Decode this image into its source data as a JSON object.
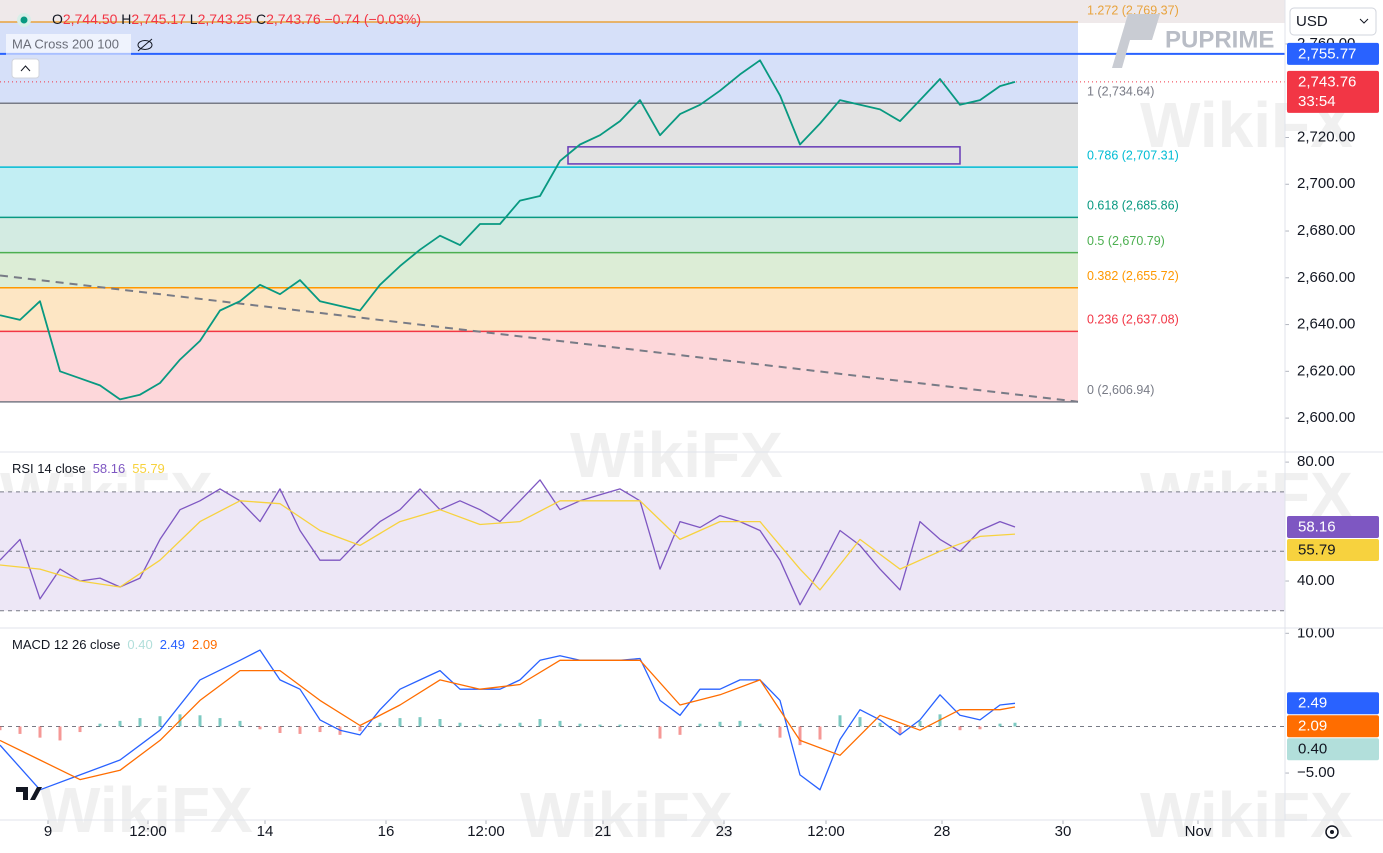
{
  "header": {
    "currency": "USD",
    "brand": "PUPRIME",
    "watermark": "WikiFX"
  },
  "legend": {
    "o_label": "O",
    "o": "2,744.50",
    "h_label": "H",
    "h": "2,745.17",
    "l_label": "L",
    "l": "2,743.25",
    "c_label": "C",
    "c": "2,743.76",
    "change": "−0.74 (−0.03%)",
    "indicator": "MA Cross 200 100"
  },
  "chart_data": [
    {
      "type": "line",
      "xlim": [
        0,
        257
      ],
      "ylim": [
        2585.5,
        2778.8
      ],
      "yticks": [
        {
          "value": 2600,
          "label": "2,600.00"
        },
        {
          "value": 2620,
          "label": "2,620.00"
        },
        {
          "value": 2640,
          "label": "2,640.00"
        },
        {
          "value": 2660,
          "label": "2,660.00"
        },
        {
          "value": 2680,
          "label": "2,680.00"
        },
        {
          "value": 2700,
          "label": "2,700.00"
        },
        {
          "value": 2720,
          "label": "2,720.00"
        },
        {
          "value": 2760,
          "label": "2,760.00"
        }
      ],
      "series": [
        {
          "color": "#089981",
          "x": [
            0,
            4,
            8,
            12,
            16,
            20,
            24,
            28,
            32,
            36,
            40,
            44,
            48,
            52,
            56,
            60,
            64,
            68,
            72,
            76,
            80,
            84,
            88,
            92,
            96,
            100,
            104,
            108,
            112,
            116,
            120,
            124,
            128,
            132,
            136,
            140,
            144,
            148,
            152,
            156,
            160,
            164,
            168,
            172,
            176,
            180,
            184,
            188,
            192,
            196,
            200,
            203
          ],
          "values": [
            2644,
            2642,
            2650,
            2620,
            2617,
            2614,
            2608,
            2610,
            2615,
            2625,
            2633,
            2646,
            2650,
            2657,
            2653,
            2659,
            2650,
            2648,
            2646,
            2657,
            2665,
            2672,
            2678,
            2674,
            2683,
            2683,
            2693,
            2695,
            2710,
            2717,
            2721,
            2727,
            2736,
            2721,
            2730,
            2734,
            2740,
            2747,
            2753,
            2738,
            2717,
            2726,
            2736,
            2734,
            2732,
            2727,
            2736,
            2745,
            2734,
            2736,
            2742,
            2743.76
          ]
        }
      ],
      "fib_levels": [
        {
          "label": "1.272 (2,769.37)",
          "value": 2769.37,
          "color": "#e8a33d",
          "fill": "#d6e0f9"
        },
        {
          "label": "1 (2,734.64)",
          "value": 2734.64,
          "color": "#787b86",
          "fill": "#e3e3e3"
        },
        {
          "label": "0.786 (2,707.31)",
          "value": 2707.31,
          "color": "#00bcd4",
          "fill": "#c2eef3"
        },
        {
          "label": "0.618 (2,685.86)",
          "value": 2685.86,
          "color": "#089981",
          "fill": "#d3ebe2"
        },
        {
          "label": "0.5 (2,670.79)",
          "value": 2670.79,
          "color": "#4caf50",
          "fill": "#dcedd6"
        },
        {
          "label": "0.382 (2,655.72)",
          "value": 2655.72,
          "color": "#ff9800",
          "fill": "#fde6c4"
        },
        {
          "label": "0.236 (2,637.08)",
          "value": 2637.08,
          "color": "#f23645",
          "fill": "#fdd7da"
        },
        {
          "label": "0 (2,606.94)",
          "value": 2606.94,
          "color": "#787b86"
        }
      ],
      "price_lines": [
        {
          "value": 2755.77,
          "label": "2,755.77",
          "color": "#2962ff",
          "style": "solid"
        },
        {
          "value": 2743.76,
          "label": "2,743.76",
          "color": "#f23645",
          "style": "dotted",
          "countdown": "33:54"
        }
      ],
      "trendline": {
        "x": [
          0,
          215.6
        ],
        "values": [
          2661,
          2607
        ],
        "color": "#787b86"
      },
      "rectangle": {
        "x": [
          113.6,
          192
        ],
        "values": [
          2716,
          2708.7
        ],
        "color": "#673ab7"
      }
    },
    {
      "type": "line",
      "title": "RSI 14 close",
      "xlim": [
        0,
        257
      ],
      "ylim": [
        24.2,
        83.4
      ],
      "yticks": [
        {
          "value": 80,
          "label": "80.00"
        },
        {
          "value": 40,
          "label": "40.00"
        }
      ],
      "levels": [
        70,
        50,
        30
      ],
      "band": [
        30,
        70
      ],
      "band_color": "#ede7f6",
      "series": [
        {
          "color": "#7e57c2",
          "label_color": "#ffffff",
          "x": [
            0,
            4,
            8,
            12,
            16,
            20,
            24,
            28,
            32,
            36,
            40,
            44,
            48,
            52,
            56,
            60,
            64,
            68,
            72,
            76,
            80,
            84,
            88,
            92,
            96,
            100,
            104,
            108,
            112,
            116,
            120,
            124,
            128,
            132,
            136,
            140,
            144,
            148,
            152,
            156,
            160,
            164,
            168,
            172,
            176,
            180,
            184,
            188,
            192,
            196,
            200,
            203
          ],
          "values": [
            47,
            54,
            34,
            44,
            40,
            41,
            38,
            41,
            54,
            64,
            67,
            71,
            67,
            60,
            71,
            57,
            47,
            47,
            54,
            60,
            64,
            71,
            64,
            67,
            64,
            60,
            67,
            74,
            64,
            67,
            69,
            71,
            67,
            44,
            60,
            58,
            62,
            60,
            57,
            47,
            32,
            44,
            57,
            52,
            44,
            37,
            60,
            54,
            50,
            57,
            60,
            58.16
          ]
        },
        {
          "color": "#f7d23e",
          "label_color": "#131722",
          "x": [
            0,
            8,
            16,
            24,
            32,
            40,
            48,
            56,
            64,
            72,
            80,
            88,
            96,
            104,
            112,
            120,
            128,
            136,
            144,
            152,
            160,
            164,
            172,
            180,
            188,
            196,
            203
          ],
          "values": [
            45.4,
            44,
            40,
            38,
            47,
            60,
            67,
            66,
            57,
            52,
            60,
            64,
            59,
            60,
            67,
            67,
            67,
            54,
            60,
            60,
            44,
            37,
            54,
            44,
            50,
            55,
            55.79
          ]
        }
      ]
    },
    {
      "type": "line",
      "title": "MACD 12 26 close",
      "xlim": [
        0,
        257
      ],
      "ylim": [
        -10.04,
        10.57
      ],
      "yticks": [
        {
          "value": 10,
          "label": "10.00"
        },
        {
          "value": -5,
          "label": "−5.00"
        }
      ],
      "levels": [
        0
      ],
      "xticks": [
        {
          "value": 9.6,
          "label": "9"
        },
        {
          "value": 29.6,
          "label": "12:00"
        },
        {
          "value": 53,
          "label": "14"
        },
        {
          "value": 77.2,
          "label": "16"
        },
        {
          "value": 97.2,
          "label": "12:00"
        },
        {
          "value": 120.6,
          "label": "21"
        },
        {
          "value": 144.8,
          "label": "23"
        },
        {
          "value": 165.2,
          "label": "12:00"
        },
        {
          "value": 188.4,
          "label": "28"
        },
        {
          "value": 212.6,
          "label": "30"
        },
        {
          "value": 239.6,
          "label": "Nov"
        }
      ],
      "series": [
        {
          "type": "bar",
          "color": "#b2dfdb",
          "label_color": "#131722",
          "up_color": "#26a69a",
          "down_color": "#ef5350",
          "x": [
            0,
            4,
            8,
            12,
            16,
            20,
            24,
            28,
            32,
            36,
            40,
            44,
            48,
            52,
            56,
            60,
            64,
            68,
            72,
            76,
            80,
            84,
            88,
            92,
            96,
            100,
            104,
            108,
            112,
            116,
            120,
            124,
            128,
            132,
            136,
            140,
            144,
            148,
            152,
            156,
            160,
            164,
            168,
            172,
            176,
            180,
            184,
            188,
            192,
            196,
            200,
            203
          ],
          "values": [
            -0.4,
            -0.8,
            -1.2,
            -1.5,
            -0.6,
            0.3,
            0.6,
            0.9,
            1.1,
            1.3,
            1.2,
            0.9,
            0.6,
            -0.3,
            -0.7,
            -0.8,
            -0.6,
            -0.9,
            -0.5,
            0.4,
            0.9,
            1.0,
            0.8,
            0.4,
            0.2,
            0.3,
            0.4,
            0.8,
            0.6,
            0.3,
            0.2,
            0.2,
            0.1,
            -1.3,
            -0.9,
            0.3,
            0.5,
            0.6,
            0.3,
            -1.2,
            -2.0,
            -1.4,
            1.2,
            1.0,
            0.4,
            -0.8,
            0.6,
            1.3,
            -0.4,
            -0.3,
            0.3,
            0.4
          ],
          "value_labels": [
            null,
            null,
            null,
            null,
            null,
            null,
            null,
            null,
            null,
            null,
            null,
            null,
            null,
            null,
            null,
            null,
            null,
            null,
            null,
            null,
            null,
            null,
            null,
            null,
            null,
            null,
            null,
            null,
            null,
            null,
            null,
            null,
            null,
            null,
            null,
            null,
            null,
            null,
            null,
            null,
            null,
            null,
            null,
            null,
            null,
            null,
            null,
            null,
            null,
            null,
            null,
            "0.40"
          ]
        },
        {
          "color": "#2962ff",
          "label_color": "#ffffff",
          "x": [
            0,
            8,
            16,
            24,
            32,
            40,
            48,
            52,
            56,
            60,
            64,
            68,
            72,
            76,
            80,
            84,
            88,
            92,
            96,
            100,
            104,
            108,
            112,
            116,
            120,
            124,
            128,
            132,
            136,
            140,
            144,
            148,
            152,
            156,
            160,
            164,
            168,
            172,
            176,
            180,
            184,
            188,
            192,
            196,
            200,
            203
          ],
          "values": [
            -2.0,
            -6.8,
            -5.2,
            -3.6,
            -0.4,
            5.0,
            7.1,
            8.2,
            5.0,
            4.0,
            0.7,
            -0.4,
            -0.9,
            1.8,
            4.0,
            5.0,
            6.0,
            4.0,
            4.0,
            4.0,
            5.0,
            7.1,
            7.6,
            7.1,
            7.1,
            7.1,
            7.3,
            2.8,
            1.2,
            4.0,
            4.0,
            5.0,
            5.0,
            2.8,
            -5.2,
            -6.8,
            -1.4,
            1.8,
            0.7,
            -0.9,
            0.7,
            3.4,
            1.2,
            0.7,
            2.3,
            2.49
          ]
        },
        {
          "color": "#ff6d00",
          "label_color": "#ffffff",
          "x": [
            0,
            8,
            16,
            24,
            32,
            40,
            48,
            56,
            64,
            72,
            80,
            88,
            96,
            104,
            112,
            120,
            128,
            136,
            144,
            152,
            160,
            168,
            176,
            184,
            192,
            200,
            203
          ],
          "values": [
            -1.5,
            -3.6,
            -5.7,
            -4.7,
            -1.5,
            2.8,
            6.0,
            6.0,
            2.8,
            0.1,
            2.3,
            5.0,
            4.0,
            4.5,
            7.1,
            7.1,
            7.1,
            2.3,
            3.4,
            5.0,
            -1.5,
            -3.1,
            1.2,
            -0.4,
            1.8,
            1.8,
            2.09
          ]
        }
      ]
    }
  ]
}
